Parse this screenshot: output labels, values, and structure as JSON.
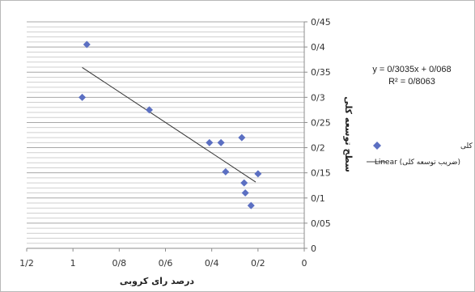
{
  "chart_data": {
    "type": "scatter",
    "x_axis_direction": "reversed",
    "y_axis_position": "right",
    "xlabel": "درصد رای کروبی",
    "ylabel": "سطح توسعه کلی",
    "xlim": [
      0,
      1.2
    ],
    "ylim": [
      0,
      0.45
    ],
    "x_ticks": [
      "0",
      "0/2",
      "0/4",
      "0/6",
      "0/8",
      "1",
      "1/2"
    ],
    "y_ticks": [
      "0",
      "0/05",
      "0/1",
      "0/15",
      "0/2",
      "0/25",
      "0/3",
      "0/35",
      "0/4",
      "0/45"
    ],
    "grid": "horizontal-minor",
    "series": [
      {
        "name": "ضریب توسعه کلی",
        "color": "#5b6fc2",
        "marker": "diamond",
        "points": [
          {
            "x": 0.94,
            "y": 0.405
          },
          {
            "x": 0.96,
            "y": 0.3
          },
          {
            "x": 0.67,
            "y": 0.275
          },
          {
            "x": 0.41,
            "y": 0.21
          },
          {
            "x": 0.36,
            "y": 0.21
          },
          {
            "x": 0.27,
            "y": 0.22
          },
          {
            "x": 0.34,
            "y": 0.152
          },
          {
            "x": 0.2,
            "y": 0.148
          },
          {
            "x": 0.26,
            "y": 0.13
          },
          {
            "x": 0.255,
            "y": 0.11
          },
          {
            "x": 0.23,
            "y": 0.085
          }
        ]
      }
    ],
    "trendline": {
      "name": "Linear (ضریب توسعه کلی)",
      "type": "linear",
      "slope": 0.3035,
      "intercept": 0.068,
      "x_range": [
        0.21,
        0.96
      ],
      "color": "#333333"
    },
    "annotations": {
      "equation": "y = 0/3035x + 0/068",
      "r_squared": "R² = 0/8063"
    },
    "legend": {
      "placement": "right",
      "entries": [
        {
          "label": "ضریب توسعه کلی",
          "symbol": "diamond"
        },
        {
          "label": "Linear (ضریب توسعه کلی)",
          "symbol": "line"
        }
      ]
    }
  }
}
